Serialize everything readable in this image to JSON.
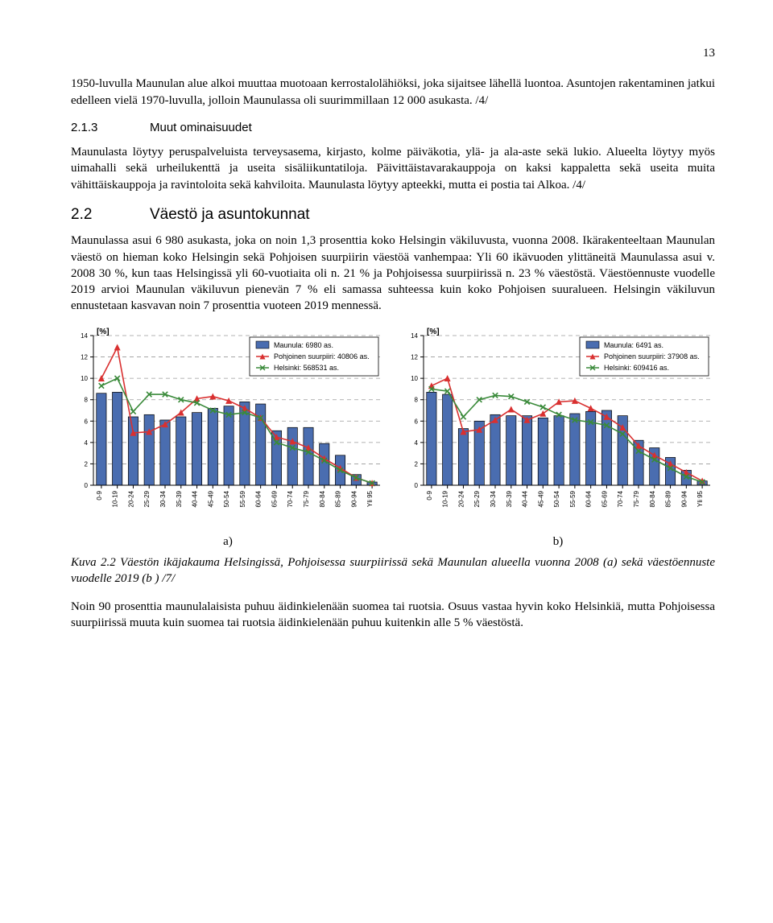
{
  "page_number": "13",
  "paragraphs": {
    "p1": "1950-luvulla Maunulan alue alkoi muuttaa muotoaan kerrostalolähiöksi, joka sijaitsee lähellä luontoa. Asuntojen rakentaminen jatkui edelleen vielä 1970-luvulla, jolloin Maunulassa oli suurimmillaan 12 000 asukasta. /4/",
    "h1_num": "2.1.3",
    "h1_text": "Muut ominaisuudet",
    "p2": "Maunulasta löytyy peruspalveluista terveysasema, kirjasto, kolme päiväkotia, ylä- ja ala-aste sekä lukio. Alueelta löytyy myös uimahalli sekä urheilukenttä ja useita sisäliikuntatiloja. Päivittäistavarakauppoja on kaksi kappaletta sekä useita muita vähittäiskauppoja ja ravintoloita sekä kahviloita. Maunulasta löytyy apteekki, mutta ei postia tai Alkoa. /4/",
    "h2_num": "2.2",
    "h2_text": "Väestö ja asuntokunnat",
    "p3": "Maunulassa asui 6 980 asukasta, joka on noin 1,3 prosenttia koko Helsingin väkiluvusta, vuonna 2008. Ikärakenteeltaan Maunulan väestö on hieman koko Helsingin sekä Pohjoisen suurpiirin väestöä vanhempaa: Yli 60 ikävuoden ylittäneitä Maunulassa asui v. 2008 30 %, kun taas Helsingissä yli 60-vuotiaita oli n. 21 % ja Pohjoisessa suurpiirissä n. 23 % väestöstä. Väestöennuste vuodelle 2019 arvioi Maunulan väkiluvun pienevän 7 % eli samassa suhteessa kuin koko Pohjoisen suuralueen. Helsingin väkiluvun ennustetaan kasvavan noin 7 prosenttia vuoteen 2019 mennessä.",
    "caption_lead": "Kuva 2.2",
    "caption_rest": "  Väestön ikäjakauma Helsingissä, Pohjoisessa suurpiirissä sekä Maunulan alueella vuonna 2008 (a) sekä väestöennuste vuodelle 2019 (b ) /7/",
    "p4": "Noin 90 prosenttia maunulalaisista puhuu äidinkielenään suomea tai ruotsia. Osuus vastaa hyvin koko Helsinkiä, mutta Pohjoisessa suurpiirissä muuta kuin suomea tai ruotsia äidinkielenään puhuu kuitenkin alle 5 % väestöstä."
  },
  "charts": {
    "common": {
      "categories": [
        "0-9",
        "10-19",
        "20-24",
        "25-29",
        "30-34",
        "35-39",
        "40-44",
        "45-49",
        "50-54",
        "55-59",
        "60-64",
        "65-69",
        "70-74",
        "75-79",
        "80-84",
        "85-89",
        "90-94",
        "Yli 95"
      ],
      "ylim": [
        0,
        14
      ],
      "ytick_step": 2,
      "ylabel": "[%]",
      "bar_color": "#4a6db0",
      "bar_border": "#000000",
      "line1_color": "#d93030",
      "line2_color": "#3a8a3a",
      "grid_color": "#9a9a9a",
      "axis_color": "#000000",
      "background_color": "#ffffff",
      "legend_fontsize": 9,
      "tick_fontsize": 8,
      "legend_border": "#000000",
      "marker1": "triangle",
      "marker2": "x"
    },
    "a": {
      "sublabel": "a)",
      "legend": [
        "Maunula: 6980 as.",
        "Pohjoinen suurpiiri: 40806 as.",
        "Helsinki: 568531 as."
      ],
      "bars": [
        8.6,
        8.7,
        6.4,
        6.6,
        6.1,
        6.4,
        6.8,
        7.2,
        7.4,
        7.8,
        7.6,
        5.1,
        5.4,
        5.4,
        3.9,
        2.8,
        1.0,
        0.3
      ],
      "line1": [
        10.0,
        12.9,
        4.9,
        5.0,
        5.7,
        6.8,
        8.1,
        8.3,
        7.9,
        7.2,
        6.3,
        4.5,
        4.1,
        3.5,
        2.5,
        1.6,
        0.7,
        0.2
      ],
      "line2": [
        9.3,
        10.0,
        6.9,
        8.5,
        8.5,
        8.0,
        7.7,
        7.0,
        6.6,
        6.8,
        6.3,
        4.0,
        3.5,
        3.1,
        2.3,
        1.4,
        0.7,
        0.2
      ]
    },
    "b": {
      "sublabel": "b)",
      "legend": [
        "Maunula: 6491 as.",
        "Pohjoinen suurpiiri: 37908 as.",
        "Helsinki: 609416 as."
      ],
      "bars": [
        8.7,
        8.5,
        5.3,
        6.0,
        6.6,
        6.5,
        6.5,
        6.3,
        6.5,
        6.7,
        6.9,
        7.0,
        6.5,
        4.2,
        3.5,
        2.6,
        1.4,
        0.4
      ],
      "line1": [
        9.3,
        10.0,
        5.0,
        5.2,
        6.1,
        7.1,
        6.1,
        6.7,
        7.8,
        7.9,
        7.2,
        6.4,
        5.4,
        3.7,
        2.8,
        2.0,
        1.2,
        0.4
      ],
      "line2": [
        9.0,
        8.8,
        6.4,
        8.0,
        8.4,
        8.3,
        7.8,
        7.3,
        6.6,
        6.1,
        5.9,
        5.6,
        4.8,
        3.2,
        2.4,
        1.6,
        0.8,
        0.3
      ]
    }
  }
}
